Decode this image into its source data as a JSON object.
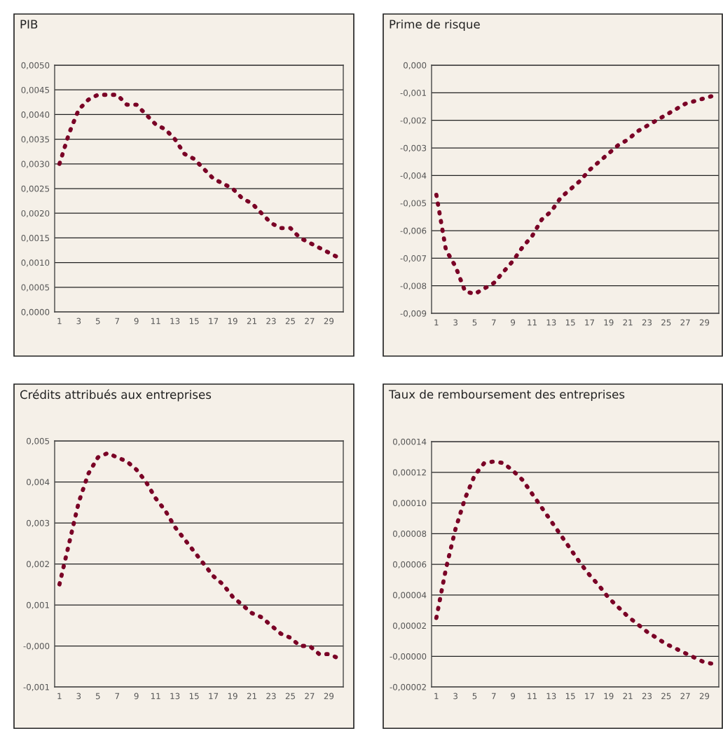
{
  "chart_data": [
    {
      "type": "line",
      "title": "PIB",
      "categories": [
        "1",
        null,
        "3",
        null,
        "5",
        null,
        "7",
        null,
        "9",
        null,
        "11",
        null,
        "13",
        null,
        "15",
        null,
        "17",
        null,
        "19",
        null,
        "21",
        null,
        "23",
        null,
        "25",
        null,
        "27",
        null,
        "29",
        null
      ],
      "series": [
        {
          "color": "#7a0026",
          "values": [
            0.003,
            0.00362,
            0.0041,
            0.0043,
            0.0044,
            0.0044,
            0.0044,
            0.0042,
            0.0042,
            0.004,
            0.0038,
            0.0037,
            0.0035,
            0.0032,
            0.0031,
            0.0029,
            0.0027,
            0.0026,
            0.0025,
            0.0023,
            0.0022,
            0.002,
            0.0018,
            0.0017,
            0.0017,
            0.0015,
            0.0014,
            0.0013,
            0.0012,
            0.0011
          ]
        }
      ],
      "ylim": [
        0,
        0.005
      ],
      "yticks": [
        {
          "value": 0,
          "label": "0,0000"
        },
        {
          "value": 0.0005,
          "label": "0,0005"
        },
        {
          "value": 0.001,
          "label": "0,0010"
        },
        {
          "value": 0.0015,
          "label": "0,0015"
        },
        {
          "value": 0.002,
          "label": "0,0020"
        },
        {
          "value": 0.0025,
          "label": "0,0025"
        },
        {
          "value": 0.003,
          "label": "0,0030"
        },
        {
          "value": 0.0035,
          "label": "0,0035"
        },
        {
          "value": 0.004,
          "label": "0,0040"
        },
        {
          "value": 0.0045,
          "label": "0,0045"
        },
        {
          "value": 0.005,
          "label": "0,0050"
        }
      ],
      "grid": "y",
      "line_style": "dotted",
      "marker": "none"
    },
    {
      "type": "line",
      "title": "Prime de risque",
      "categories": [
        "1",
        null,
        "3",
        null,
        "5",
        null,
        "7",
        null,
        "9",
        null,
        "11",
        null,
        "13",
        null,
        "15",
        null,
        "17",
        null,
        "19",
        null,
        "21",
        null,
        "23",
        null,
        "25",
        null,
        "27",
        null,
        "29",
        null
      ],
      "series": [
        {
          "color": "#7a0026",
          "values": [
            -0.0047,
            -0.0067,
            -0.0073,
            -0.0082,
            -0.0083,
            -0.0081,
            -0.0079,
            -0.0075,
            -0.0071,
            -0.0066,
            -0.0062,
            -0.0056,
            -0.0053,
            -0.0048,
            -0.0045,
            -0.0042,
            -0.0038,
            -0.0035,
            -0.0032,
            -0.0029,
            -0.0027,
            -0.0024,
            -0.0022,
            -0.002,
            -0.0018,
            -0.0016,
            -0.0014,
            -0.0013,
            -0.0012,
            -0.0011
          ]
        }
      ],
      "ylim": [
        -0.009,
        0
      ],
      "yticks": [
        {
          "value": -0.009,
          "label": "-0,009"
        },
        {
          "value": -0.008,
          "label": "-0,008"
        },
        {
          "value": -0.007,
          "label": "-0,007"
        },
        {
          "value": -0.006,
          "label": "-0,006"
        },
        {
          "value": -0.005,
          "label": "-0,005"
        },
        {
          "value": -0.004,
          "label": "-0,004"
        },
        {
          "value": -0.003,
          "label": "-0,003"
        },
        {
          "value": -0.002,
          "label": "-0,002"
        },
        {
          "value": -0.001,
          "label": "-0,001"
        },
        {
          "value": 0,
          "label": "0,000"
        }
      ],
      "grid": "y",
      "line_style": "dotted",
      "marker": "none"
    },
    {
      "type": "line",
      "title": "Crédits attribués aux entreprises",
      "categories": [
        "1",
        null,
        "3",
        null,
        "5",
        null,
        "7",
        null,
        "9",
        null,
        "11",
        null,
        "13",
        null,
        "15",
        null,
        "17",
        null,
        "19",
        null,
        "21",
        null,
        "23",
        null,
        "25",
        null,
        "27",
        null,
        "29",
        null
      ],
      "series": [
        {
          "color": "#7a0026",
          "values": [
            0.0015,
            0.0025,
            0.0035,
            0.0042,
            0.0046,
            0.0047,
            0.0046,
            0.0045,
            0.0043,
            0.004,
            0.0036,
            0.0033,
            0.0029,
            0.0026,
            0.0023,
            0.002,
            0.0017,
            0.0015,
            0.0012,
            0.001,
            0.0008,
            0.0007,
            0.0005,
            0.0003,
            0.0002,
            0.0,
            0.0,
            -0.0002,
            -0.0002,
            -0.0003
          ]
        }
      ],
      "ylim": [
        -0.001,
        0.005
      ],
      "yticks": [
        {
          "value": -0.001,
          "label": "-0,001"
        },
        {
          "value": 0,
          "label": "-0,000"
        },
        {
          "value": 0.001,
          "label": "0,001"
        },
        {
          "value": 0.002,
          "label": "0,002"
        },
        {
          "value": 0.003,
          "label": "0,003"
        },
        {
          "value": 0.004,
          "label": "0,004"
        },
        {
          "value": 0.005,
          "label": "0,005"
        }
      ],
      "grid": "y",
      "line_style": "dotted",
      "marker": "none"
    },
    {
      "type": "line",
      "title": "Taux de remboursement des entreprises",
      "categories": [
        "1",
        null,
        "3",
        null,
        "5",
        null,
        "7",
        null,
        "9",
        null,
        "11",
        null,
        "13",
        null,
        "15",
        null,
        "17",
        null,
        "19",
        null,
        "21",
        null,
        "23",
        null,
        "25",
        null,
        "27",
        null,
        "29",
        null
      ],
      "series": [
        {
          "color": "#7a0026",
          "values": [
            2.5e-05,
            5.7e-05,
            8.3e-05,
            0.000103,
            0.000118,
            0.000126,
            0.000127,
            0.000126,
            0.000121,
            0.000115,
            0.000106,
            9.7e-05,
            8.8e-05,
            7.9e-05,
            7e-05,
            6.1e-05,
            5.3e-05,
            4.6e-05,
            3.8e-05,
            3.2e-05,
            2.6e-05,
            2.1e-05,
            1.6e-05,
            1.2e-05,
            8e-06,
            5e-06,
            2e-06,
            -1e-06,
            -4e-06,
            -5e-06
          ]
        }
      ],
      "ylim": [
        -2e-05,
        0.00014
      ],
      "yticks": [
        {
          "value": -2e-05,
          "label": "-0,00002"
        },
        {
          "value": 0,
          "label": "-0,00000"
        },
        {
          "value": 2e-05,
          "label": "0,00002"
        },
        {
          "value": 4e-05,
          "label": "0,00004"
        },
        {
          "value": 6e-05,
          "label": "0,00006"
        },
        {
          "value": 8e-05,
          "label": "0,00008"
        },
        {
          "value": 0.0001,
          "label": "0,00010"
        },
        {
          "value": 0.00012,
          "label": "0,00012"
        },
        {
          "value": 0.00014,
          "label": "0,00014"
        }
      ],
      "grid": "y",
      "line_style": "dotted",
      "marker": "none"
    }
  ]
}
